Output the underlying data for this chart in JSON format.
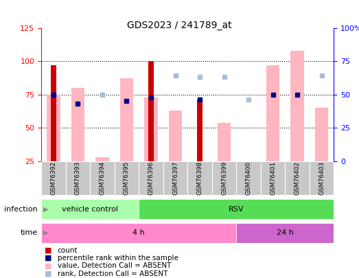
{
  "title": "GDS2023 / 241789_at",
  "samples": [
    "GSM76392",
    "GSM76393",
    "GSM76394",
    "GSM76395",
    "GSM76396",
    "GSM76397",
    "GSM76398",
    "GSM76399",
    "GSM76400",
    "GSM76401",
    "GSM76402",
    "GSM76403"
  ],
  "count_heights": [
    72,
    0,
    0,
    0,
    75,
    0,
    46,
    0,
    0,
    0,
    0,
    0
  ],
  "rank_bar_heights": [
    50,
    55,
    3,
    62,
    48,
    38,
    0,
    29,
    0,
    72,
    83,
    40
  ],
  "percentile_vals": [
    75,
    68,
    0,
    70,
    73,
    0,
    71,
    0,
    0,
    75,
    75,
    0
  ],
  "rank_marker_vals": [
    0,
    0,
    50,
    0,
    0,
    64,
    63,
    63,
    46,
    0,
    0,
    64
  ],
  "has_count": [
    true,
    false,
    false,
    false,
    true,
    false,
    true,
    false,
    false,
    false,
    false,
    false
  ],
  "has_rank_bar": [
    true,
    true,
    true,
    true,
    true,
    true,
    false,
    true,
    false,
    true,
    true,
    true
  ],
  "has_percentile": [
    true,
    true,
    false,
    true,
    true,
    false,
    true,
    false,
    false,
    true,
    true,
    false
  ],
  "has_rank_marker": [
    false,
    false,
    true,
    false,
    false,
    true,
    true,
    true,
    true,
    false,
    false,
    true
  ],
  "ylim": [
    25,
    125
  ],
  "yticks_left": [
    25,
    50,
    75,
    100,
    125
  ],
  "yticks_right": [
    0,
    25,
    50,
    75,
    100
  ],
  "ytick_labels_right": [
    "0",
    "25",
    "50",
    "75",
    "100%"
  ],
  "count_color": "#CC0000",
  "rank_bar_color": "#FFB6C1",
  "percentile_color": "#00008B",
  "rank_marker_color": "#AABBDD",
  "sample_bg": "#C8C8C8",
  "infection_colors": [
    "#AAFFAA",
    "#55DD55"
  ],
  "infection_labels": [
    "vehicle control",
    "RSV"
  ],
  "infection_starts": [
    0,
    4
  ],
  "infection_ends": [
    4,
    12
  ],
  "time_colors": [
    "#FF88CC",
    "#CC66CC"
  ],
  "time_labels": [
    "4 h",
    "24 h"
  ],
  "time_starts": [
    0,
    8
  ],
  "time_ends": [
    8,
    12
  ],
  "legend_items": [
    {
      "color": "#CC0000",
      "label": "count"
    },
    {
      "color": "#00008B",
      "label": "percentile rank within the sample"
    },
    {
      "color": "#FFB6C1",
      "label": "value, Detection Call = ABSENT"
    },
    {
      "color": "#AABBDD",
      "label": "rank, Detection Call = ABSENT"
    }
  ]
}
